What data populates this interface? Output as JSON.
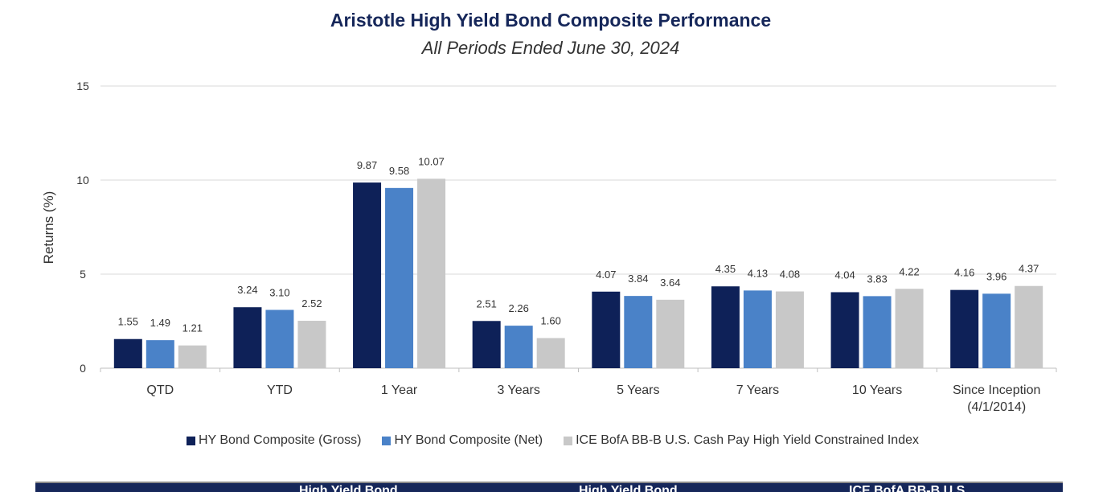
{
  "chart_data": {
    "type": "bar",
    "title": "Aristotle High Yield Bond Composite Performance",
    "subtitle": "All Periods Ended June 30, 2024",
    "ylabel": "Returns (%)",
    "xlabel": "",
    "ylim": [
      0,
      15
    ],
    "yticks": [
      0,
      5,
      10,
      15
    ],
    "grid": true,
    "legend_position": "bottom",
    "categories": [
      "QTD",
      "YTD",
      "1 Year",
      "3 Years",
      "5 Years",
      "7 Years",
      "10 Years",
      "Since Inception (4/1/2014)"
    ],
    "category_lines": [
      [
        "QTD"
      ],
      [
        "YTD"
      ],
      [
        "1 Year"
      ],
      [
        "3 Years"
      ],
      [
        "5 Years"
      ],
      [
        "7 Years"
      ],
      [
        "10 Years"
      ],
      [
        "Since Inception",
        "(4/1/2014)"
      ]
    ],
    "series": [
      {
        "name": "HY Bond Composite (Gross)",
        "color": "#0e2158",
        "values": [
          1.55,
          3.24,
          9.87,
          2.51,
          4.07,
          4.35,
          4.04,
          4.16
        ],
        "labels": [
          "1.55",
          "3.24",
          "9.87",
          "2.51",
          "4.07",
          "4.35",
          "4.04",
          "4.16"
        ]
      },
      {
        "name": "HY Bond Composite (Net)",
        "color": "#4a82c8",
        "values": [
          1.49,
          3.1,
          9.58,
          2.26,
          3.84,
          4.13,
          3.83,
          3.96
        ],
        "labels": [
          "1.49",
          "3.10",
          "9.58",
          "2.26",
          "3.84",
          "4.13",
          "3.83",
          "3.96"
        ]
      },
      {
        "name": "ICE BofA BB-B U.S. Cash Pay High Yield Constrained Index",
        "color": "#c8c8c8",
        "values": [
          1.21,
          2.52,
          10.07,
          1.6,
          3.64,
          4.08,
          4.22,
          4.37
        ],
        "labels": [
          "1.21",
          "2.52",
          "10.07",
          "1.60",
          "3.64",
          "4.08",
          "4.22",
          "4.37"
        ]
      }
    ]
  },
  "table_header": {
    "col1": "High Yield Bond",
    "col2": "High Yield Bond",
    "col3": "ICE BofA BB-B U.S."
  }
}
